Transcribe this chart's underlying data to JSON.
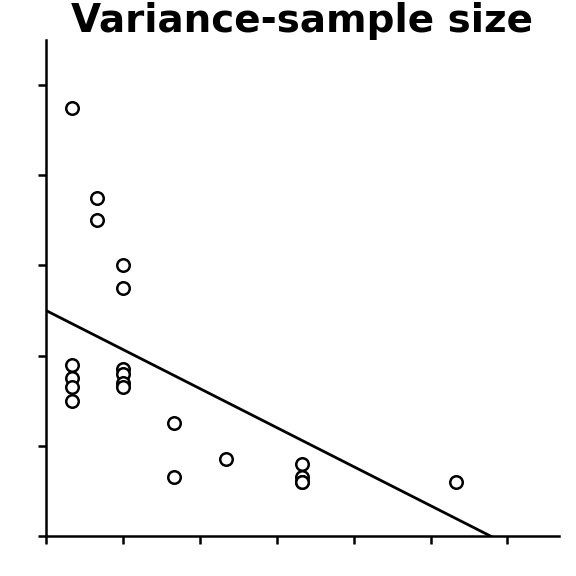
{
  "title": "Variance-sample size",
  "x_data": [
    10,
    20,
    20,
    30,
    30,
    10,
    10,
    10,
    10,
    30,
    30,
    30,
    30,
    50,
    70,
    100,
    100,
    100,
    100,
    160,
    50
  ],
  "y_data": [
    0.95,
    0.75,
    0.7,
    0.6,
    0.55,
    0.38,
    0.35,
    0.33,
    0.3,
    0.37,
    0.36,
    0.34,
    0.33,
    0.25,
    0.17,
    0.16,
    0.13,
    0.12,
    0.12,
    0.12,
    0.13
  ],
  "line_x": [
    0,
    180
  ],
  "line_y": [
    0.5,
    -0.02
  ],
  "xlim": [
    0,
    200
  ],
  "ylim": [
    0,
    1.1
  ],
  "xticks": [
    0,
    30,
    60,
    90,
    120,
    150,
    180
  ],
  "yticks": [
    0.0,
    0.2,
    0.4,
    0.6,
    0.8,
    1.0
  ],
  "marker_size": 9,
  "marker_color": "white",
  "marker_edge_color": "black",
  "marker_edge_width": 1.8,
  "line_color": "black",
  "line_width": 2.0,
  "title_fontsize": 28,
  "background_color": "white"
}
